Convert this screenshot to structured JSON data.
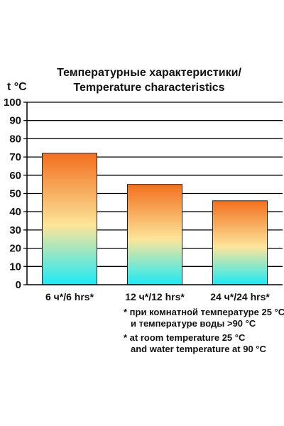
{
  "chart_data": {
    "type": "bar",
    "title_line1": "Температурные характеристики/",
    "title_line2": "Temperature characteristics",
    "ylabel": "t °C",
    "xlabel": "",
    "categories": [
      "6 ч*/6 hrs*",
      "12 ч*/12 hrs*",
      "24 ч*/24 hrs*"
    ],
    "values": [
      72,
      55,
      46
    ],
    "ylim": [
      0,
      100
    ],
    "yticks": [
      0,
      10,
      20,
      30,
      40,
      50,
      60,
      70,
      80,
      90,
      100
    ],
    "grid": true,
    "gradient_colors": {
      "top": "#f26f1e",
      "mid": "#fce59a",
      "bottom": "#1de9f6"
    }
  },
  "footnotes": {
    "ru_line1": "* при комнатной температуре 25 °C",
    "ru_line2": "и температуре воды >90 °C",
    "en_line1": "* at room temperature 25 °C",
    "en_line2": "and water temperature at 90 °C"
  }
}
